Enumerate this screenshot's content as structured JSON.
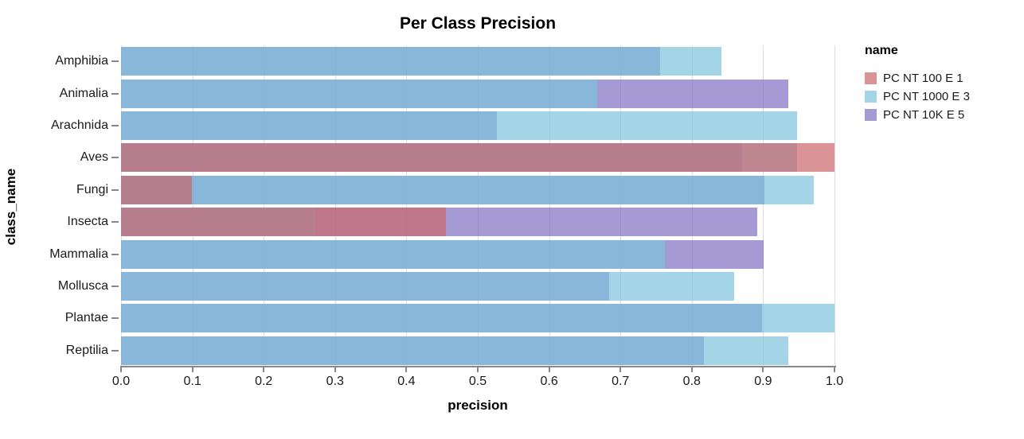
{
  "title": "Per Class Precision",
  "x_axis": {
    "label": "precision",
    "tick_labels": [
      "0.0",
      "0.1",
      "0.2",
      "0.3",
      "0.4",
      "0.5",
      "0.6",
      "0.7",
      "0.8",
      "0.9",
      "1.0"
    ],
    "min": 0,
    "max": 1
  },
  "y_axis": {
    "label": "class_name"
  },
  "legend": {
    "title": "name",
    "items": [
      {
        "label": "PC NT 100 E 1",
        "color": "#ca666c"
      },
      {
        "label": "PC NT 1000 E 3",
        "color": "#7ec3dc"
      },
      {
        "label": "PC NT 10K E 5",
        "color": "#7f6fc0"
      }
    ]
  },
  "chart_data": {
    "type": "bar",
    "orientation": "horizontal",
    "title": "Per Class Precision",
    "xlabel": "precision",
    "ylabel": "class_name",
    "xlim": [
      0,
      1
    ],
    "grid": true,
    "bar_opacity": 0.7,
    "legend_position": "right",
    "categories": [
      "Amphibia",
      "Animalia",
      "Arachnida",
      "Aves",
      "Fungi",
      "Insecta",
      "Mammalia",
      "Mollusca",
      "Plantae",
      "Reptilia"
    ],
    "series": [
      {
        "name": "PC NT 100 E 1",
        "color": "#ca666c",
        "values": [
          null,
          null,
          null,
          1.0,
          0.099,
          0.455,
          null,
          null,
          null,
          null
        ]
      },
      {
        "name": "PC NT 1000 E 3",
        "color": "#7ec3dc",
        "values": [
          0.842,
          0.667,
          0.948,
          0.948,
          0.971,
          0.272,
          0.762,
          0.859,
          1.0,
          0.935
        ]
      },
      {
        "name": "PC NT 10K E 5",
        "color": "#7f6fc0",
        "values": [
          0.756,
          0.935,
          0.527,
          0.871,
          0.902,
          0.892,
          0.901,
          0.684,
          0.898,
          0.817
        ]
      }
    ]
  }
}
